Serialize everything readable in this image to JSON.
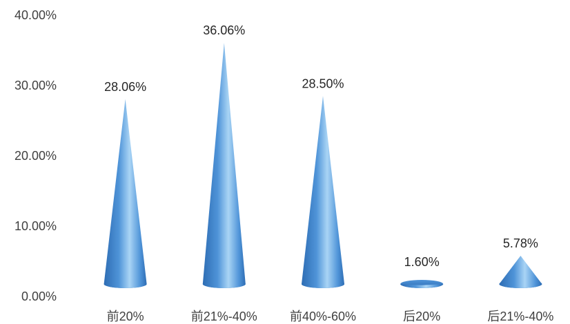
{
  "chart_data": {
    "type": "bar",
    "style": "cone",
    "categories": [
      "前20%",
      "前21%-40%",
      "前40%-60%",
      "后20%",
      "后21%-40%"
    ],
    "values": [
      28.06,
      36.06,
      28.5,
      1.6,
      5.78
    ],
    "data_labels": [
      "28.06%",
      "36.06%",
      "28.50%",
      "1.60%",
      "5.78%"
    ],
    "y_ticks": [
      {
        "value": 0,
        "label": "0.00%"
      },
      {
        "value": 10,
        "label": "10.00%"
      },
      {
        "value": 20,
        "label": "20.00%"
      },
      {
        "value": 30,
        "label": "30.00%"
      },
      {
        "value": 40,
        "label": "40.00%"
      }
    ],
    "ylim": [
      0,
      40
    ],
    "grid": false,
    "legend": "none",
    "colors": {
      "bar_dark": "#2E6DB4",
      "bar_mid": "#4F94D8",
      "bar_light": "#A9D4F5",
      "text": "#404040"
    }
  }
}
